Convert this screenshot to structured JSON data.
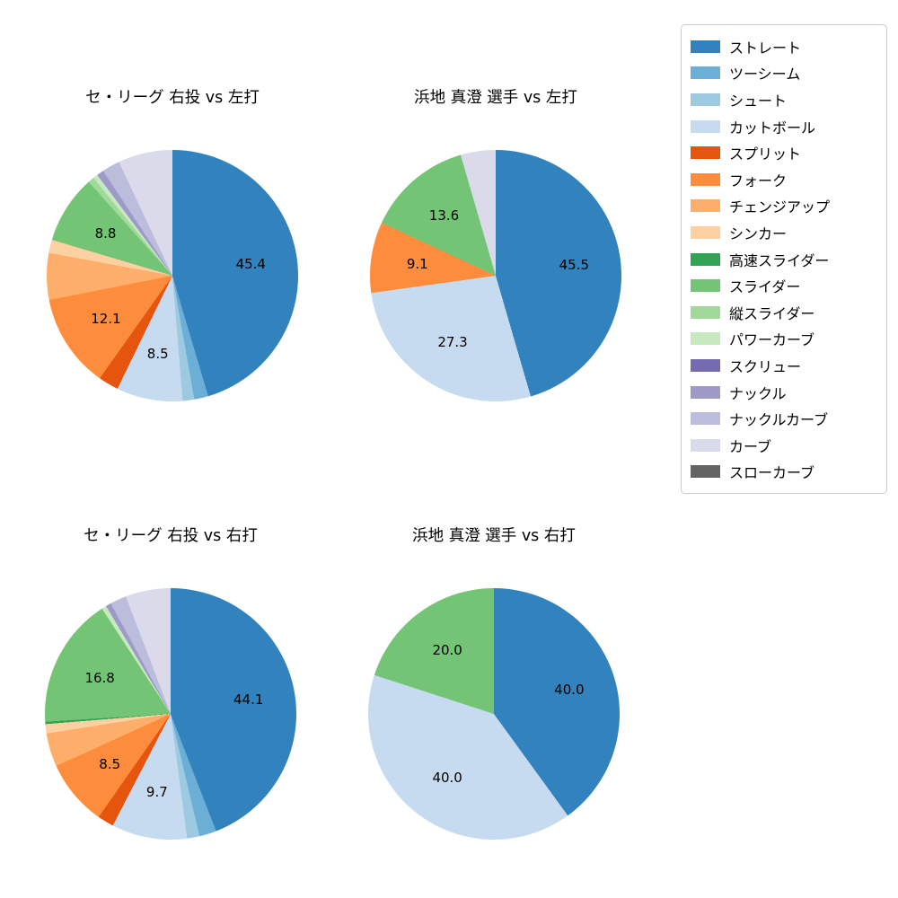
{
  "page": {
    "background": "#ffffff"
  },
  "chart_data": {
    "type": "pie",
    "direction": "clockwise",
    "start_angle": "top",
    "label_format": "percent-one-decimal",
    "label_threshold": 8,
    "charts": [
      {
        "title": "セ・リーグ 右投 vs 左打",
        "slices": [
          {
            "label": "ストレート",
            "value": 45.4,
            "color": "#3182bd"
          },
          {
            "label": "ツーシーム",
            "value": 1.8,
            "color": "#6baed6"
          },
          {
            "label": "シュート",
            "value": 1.5,
            "color": "#9ecae1"
          },
          {
            "label": "カットボール",
            "value": 8.5,
            "color": "#c6dbef"
          },
          {
            "label": "スプリット",
            "value": 2.6,
            "color": "#e6550d"
          },
          {
            "label": "フォーク",
            "value": 12.1,
            "color": "#fd8d3c"
          },
          {
            "label": "チェンジアップ",
            "value": 6.0,
            "color": "#fdae6b"
          },
          {
            "label": "シンカー",
            "value": 1.7,
            "color": "#fdd0a2"
          },
          {
            "label": "スライダー",
            "value": 8.8,
            "color": "#74c476"
          },
          {
            "label": "縦スライダー",
            "value": 0.8,
            "color": "#a1d99b"
          },
          {
            "label": "パワーカーブ",
            "value": 0.6,
            "color": "#c7e9c0"
          },
          {
            "label": "ナックル",
            "value": 0.9,
            "color": "#9e9ac8"
          },
          {
            "label": "ナックルカーブ",
            "value": 2.3,
            "color": "#bcbddc"
          },
          {
            "label": "カーブ",
            "value": 7.0,
            "color": "#dadaeb"
          }
        ]
      },
      {
        "title": "浜地 真澄 選手 vs 左打",
        "slices": [
          {
            "label": "ストレート",
            "value": 45.5,
            "color": "#3182bd"
          },
          {
            "label": "カットボール",
            "value": 27.3,
            "color": "#c6dbef"
          },
          {
            "label": "フォーク",
            "value": 9.1,
            "color": "#fd8d3c"
          },
          {
            "label": "スライダー",
            "value": 13.6,
            "color": "#74c476"
          },
          {
            "label": "カーブ",
            "value": 4.5,
            "color": "#dadaeb"
          }
        ]
      },
      {
        "title": "セ・リーグ 右投 vs 右打",
        "slices": [
          {
            "label": "ストレート",
            "value": 44.1,
            "color": "#3182bd"
          },
          {
            "label": "ツーシーム",
            "value": 2.2,
            "color": "#6baed6"
          },
          {
            "label": "シュート",
            "value": 1.6,
            "color": "#9ecae1"
          },
          {
            "label": "カットボール",
            "value": 9.7,
            "color": "#c6dbef"
          },
          {
            "label": "スプリット",
            "value": 2.1,
            "color": "#e6550d"
          },
          {
            "label": "フォーク",
            "value": 8.5,
            "color": "#fd8d3c"
          },
          {
            "label": "チェンジアップ",
            "value": 4.3,
            "color": "#fdae6b"
          },
          {
            "label": "シンカー",
            "value": 1.2,
            "color": "#fdd0a2"
          },
          {
            "label": "高速スライダー",
            "value": 0.3,
            "color": "#31a354"
          },
          {
            "label": "スライダー",
            "value": 16.8,
            "color": "#74c476"
          },
          {
            "label": "パワーカーブ",
            "value": 0.6,
            "color": "#c7e9c0"
          },
          {
            "label": "ナックル",
            "value": 0.7,
            "color": "#9e9ac8"
          },
          {
            "label": "ナックルカーブ",
            "value": 2.1,
            "color": "#bcbddc"
          },
          {
            "label": "カーブ",
            "value": 5.8,
            "color": "#dadaeb"
          }
        ]
      },
      {
        "title": "浜地 真澄 選手 vs 右打",
        "slices": [
          {
            "label": "ストレート",
            "value": 40.0,
            "color": "#3182bd"
          },
          {
            "label": "カットボール",
            "value": 40.0,
            "color": "#c6dbef"
          },
          {
            "label": "スライダー",
            "value": 20.0,
            "color": "#74c476"
          }
        ]
      }
    ],
    "legend": {
      "position": "upper right",
      "entries": [
        {
          "label": "ストレート",
          "color": "#3182bd"
        },
        {
          "label": "ツーシーム",
          "color": "#6baed6"
        },
        {
          "label": "シュート",
          "color": "#9ecae1"
        },
        {
          "label": "カットボール",
          "color": "#c6dbef"
        },
        {
          "label": "スプリット",
          "color": "#e6550d"
        },
        {
          "label": "フォーク",
          "color": "#fd8d3c"
        },
        {
          "label": "チェンジアップ",
          "color": "#fdae6b"
        },
        {
          "label": "シンカー",
          "color": "#fdd0a2"
        },
        {
          "label": "高速スライダー",
          "color": "#31a354"
        },
        {
          "label": "スライダー",
          "color": "#74c476"
        },
        {
          "label": "縦スライダー",
          "color": "#a1d99b"
        },
        {
          "label": "パワーカーブ",
          "color": "#c7e9c0"
        },
        {
          "label": "スクリュー",
          "color": "#756bb1"
        },
        {
          "label": "ナックル",
          "color": "#9e9ac8"
        },
        {
          "label": "ナックルカーブ",
          "color": "#bcbddc"
        },
        {
          "label": "カーブ",
          "color": "#dadaeb"
        },
        {
          "label": "スローカーブ",
          "color": "#636363"
        }
      ]
    }
  }
}
